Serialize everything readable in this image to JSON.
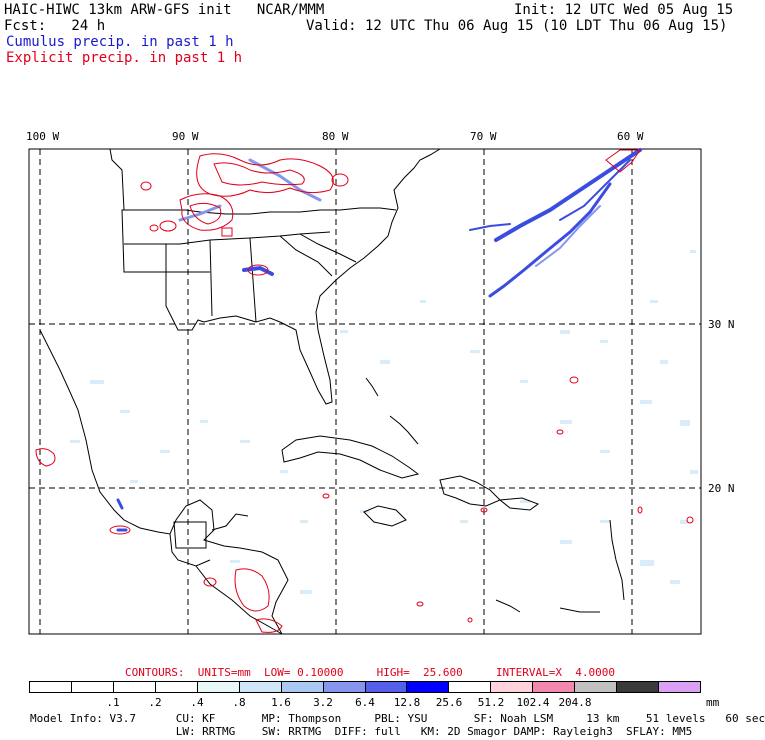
{
  "header": {
    "model_title": "HAIC-HIWC 13km ARW-GFS init   NCAR/MMM",
    "init": "Init: 12 UTC Wed 05 Aug 15",
    "fcst": "Fcst:   24 h",
    "valid": "Valid: 12 UTC Thu 06 Aug 15 (10 LDT Thu 06 Aug 15)",
    "cumulus_label": "Cumulus precip. in past 1 h",
    "explicit_label": "Explicit precip. in past 1 h"
  },
  "map": {
    "lon_labels": [
      "100 W",
      "90 W",
      "80 W",
      "70 W",
      "60 W"
    ],
    "lat_labels": [
      "30 N",
      "20 N"
    ],
    "colors": {
      "land_line": "#000000",
      "grid": "#000000",
      "cumulus": "#3a4de0",
      "cumulus_light": "#cfe6f8",
      "explicit": "#e0001b"
    }
  },
  "contours": {
    "text": "CONTOURS:  UNITS=mm  LOW= 0.10000     HIGH=  25.600     INTERVAL=X  4.0000"
  },
  "colorbar": {
    "colors": [
      "#ffffff",
      "#ffffff",
      "#ffffff",
      "#ffffff",
      "#e8f8f8",
      "#cfe6f8",
      "#a9c8f4",
      "#8795ef",
      "#5560ea",
      "#0000ff",
      "#ffffff",
      "#ffd2dc",
      "#f288b0",
      "#c0c0c0",
      "#3a3a3a",
      "#d9a0f4"
    ],
    "labels": [
      ".1",
      ".2",
      ".4",
      ".8",
      "1.6",
      "3.2",
      "6.4",
      "12.8",
      "25.6",
      "51.2",
      "102.4",
      "204.8"
    ],
    "unit": "mm"
  },
  "model_info": {
    "line1": "Model Info: V3.7      CU: KF       MP: Thompson     PBL: YSU       SF: Noah LSM     13 km    51 levels   60 sec",
    "line2": "                      LW: RRTMG    SW: RRTMG  DIFF: full   KM: 2D Smagor DAMP: Rayleigh3  SFLAY: MM5"
  }
}
